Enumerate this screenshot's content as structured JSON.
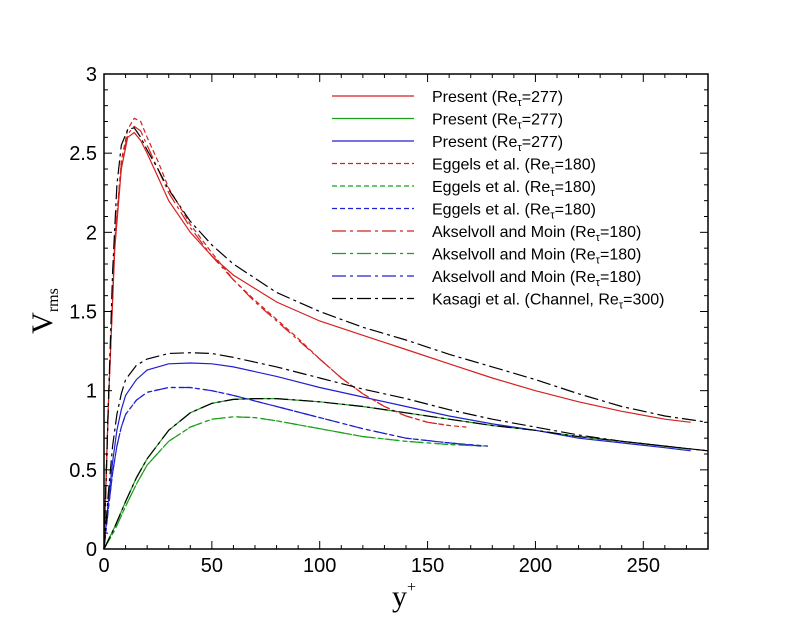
{
  "chart_data": {
    "type": "line",
    "title": "",
    "xlabel": "y",
    "xlabel_sup": "+",
    "ylabel": "V",
    "ylabel_sub": "rms",
    "xlim": [
      0,
      280
    ],
    "ylim": [
      0,
      3
    ],
    "xticks": [
      0,
      50,
      100,
      150,
      200,
      250
    ],
    "yticks": [
      0,
      0.5,
      1,
      1.5,
      2,
      2.5,
      3
    ],
    "ytick_labels": [
      "0",
      "0.5",
      "1",
      "1.5",
      "2",
      "2.5",
      "3"
    ],
    "grid": false,
    "legend_position": "top-right",
    "series": [
      {
        "legend": [
          "Present (Re",
          "τ",
          "=277)"
        ],
        "color": "#d42020",
        "dash": "solid",
        "x": [
          0,
          2,
          5,
          8,
          11,
          14,
          17,
          20,
          25,
          30,
          40,
          50,
          60,
          80,
          100,
          120,
          140,
          160,
          180,
          200,
          220,
          240,
          260,
          272
        ],
        "y": [
          0,
          0.9,
          1.9,
          2.4,
          2.6,
          2.63,
          2.58,
          2.5,
          2.35,
          2.2,
          2.0,
          1.85,
          1.73,
          1.56,
          1.44,
          1.35,
          1.26,
          1.17,
          1.08,
          1.0,
          0.93,
          0.87,
          0.82,
          0.8
        ]
      },
      {
        "legend": [
          "Present (Re",
          "τ",
          "=277)"
        ],
        "color": "#1aa01a",
        "dash": "solid",
        "x": [
          0,
          5,
          10,
          15,
          20,
          30,
          40,
          50,
          60,
          70,
          80,
          100,
          120,
          140,
          160,
          180,
          200,
          220,
          240,
          260,
          272
        ],
        "y": [
          0,
          0.14,
          0.3,
          0.45,
          0.57,
          0.75,
          0.86,
          0.92,
          0.945,
          0.95,
          0.95,
          0.93,
          0.9,
          0.86,
          0.82,
          0.78,
          0.75,
          0.71,
          0.68,
          0.65,
          0.63
        ]
      },
      {
        "legend": [
          "Present (Re",
          "τ",
          "=277)"
        ],
        "color": "#2020d0",
        "dash": "solid",
        "x": [
          0,
          2,
          4,
          6,
          8,
          10,
          15,
          20,
          30,
          40,
          50,
          60,
          80,
          100,
          120,
          140,
          160,
          180,
          200,
          220,
          240,
          260,
          272
        ],
        "y": [
          0,
          0.3,
          0.55,
          0.75,
          0.88,
          0.97,
          1.07,
          1.13,
          1.17,
          1.175,
          1.17,
          1.15,
          1.09,
          1.02,
          0.96,
          0.9,
          0.84,
          0.79,
          0.75,
          0.7,
          0.67,
          0.64,
          0.62
        ]
      },
      {
        "legend": [
          "Eggels et al. (Re",
          "τ",
          "=180)"
        ],
        "color": "#d42020",
        "dash": "5,3",
        "x": [
          0,
          2,
          5,
          8,
          11,
          14,
          17,
          20,
          25,
          30,
          40,
          50,
          60,
          70,
          80,
          90,
          100,
          110,
          120,
          130,
          140,
          150,
          160,
          168
        ],
        "y": [
          0,
          0.9,
          1.95,
          2.45,
          2.65,
          2.72,
          2.7,
          2.6,
          2.45,
          2.28,
          2.05,
          1.87,
          1.7,
          1.57,
          1.45,
          1.33,
          1.2,
          1.08,
          0.98,
          0.9,
          0.84,
          0.8,
          0.78,
          0.77
        ]
      },
      {
        "legend": [
          "Eggels et al. (Re",
          "τ",
          "=180)"
        ],
        "color": "#1aa01a",
        "dash": "5,3",
        "x": [
          0,
          5,
          10,
          15,
          20,
          30,
          40,
          50,
          60,
          70,
          80,
          100,
          120,
          140,
          160,
          178
        ],
        "y": [
          0,
          0.12,
          0.27,
          0.41,
          0.53,
          0.68,
          0.77,
          0.82,
          0.835,
          0.83,
          0.81,
          0.76,
          0.71,
          0.68,
          0.66,
          0.65
        ]
      },
      {
        "legend": [
          "Eggels et al. (Re",
          "τ",
          "=180)"
        ],
        "color": "#2020d0",
        "dash": "5,3",
        "x": [
          0,
          2,
          4,
          6,
          8,
          10,
          15,
          20,
          30,
          40,
          50,
          60,
          80,
          100,
          120,
          140,
          160,
          178
        ],
        "y": [
          0,
          0.25,
          0.48,
          0.65,
          0.77,
          0.85,
          0.94,
          0.99,
          1.02,
          1.02,
          1.0,
          0.97,
          0.9,
          0.83,
          0.76,
          0.7,
          0.67,
          0.65
        ]
      },
      {
        "legend": [
          "Akselvoll and Moin (Re",
          "τ",
          "=180)"
        ],
        "color": "#d42020",
        "dash": "14,4,3,4",
        "x": [
          0,
          2,
          5,
          8,
          11,
          14,
          17,
          20,
          25,
          30,
          40,
          50,
          60,
          70,
          80,
          90,
          100,
          110,
          120,
          130,
          140,
          150,
          160
        ],
        "y": [
          0,
          0.9,
          1.95,
          2.43,
          2.62,
          2.67,
          2.64,
          2.55,
          2.4,
          2.25,
          2.03,
          1.85,
          1.7,
          1.56,
          1.44,
          1.32,
          1.2,
          1.08,
          0.98,
          0.9,
          0.84,
          0.8,
          0.78
        ]
      },
      {
        "legend": [
          "Akselvoll and Moin (Re",
          "τ",
          "=180)"
        ],
        "color": "#1aa01a",
        "dash": "14,4,3,4",
        "x": [
          0,
          5,
          10,
          15,
          20,
          30,
          40,
          50,
          60,
          70,
          80,
          100,
          120,
          140,
          160,
          175
        ],
        "y": [
          0,
          0.12,
          0.27,
          0.41,
          0.53,
          0.68,
          0.77,
          0.82,
          0.835,
          0.83,
          0.81,
          0.76,
          0.71,
          0.68,
          0.66,
          0.65
        ]
      },
      {
        "legend": [
          "Akselvoll and Moin (Re",
          "τ",
          "=180)"
        ],
        "color": "#2020d0",
        "dash": "14,4,3,4",
        "x": [
          0,
          2,
          4,
          6,
          8,
          10,
          15,
          20,
          30,
          40,
          50,
          60,
          80,
          100,
          120,
          140,
          160,
          175
        ],
        "y": [
          0,
          0.25,
          0.48,
          0.65,
          0.77,
          0.85,
          0.94,
          0.99,
          1.02,
          1.02,
          1.0,
          0.97,
          0.9,
          0.83,
          0.76,
          0.7,
          0.67,
          0.65
        ]
      },
      {
        "legend": [
          "Kasagi et al. (Channel, Re",
          "τ",
          "=300)"
        ],
        "color": "#000000",
        "dash": "14,4,3,4",
        "x": [
          0,
          2,
          4,
          6,
          8,
          11,
          14,
          17,
          20,
          25,
          30,
          40,
          50,
          60,
          80,
          100,
          120,
          140,
          160,
          180,
          200,
          220,
          240,
          260,
          280
        ],
        "y": [
          0,
          0.9,
          1.75,
          2.3,
          2.55,
          2.65,
          2.66,
          2.6,
          2.52,
          2.4,
          2.27,
          2.07,
          1.92,
          1.8,
          1.62,
          1.5,
          1.4,
          1.32,
          1.23,
          1.15,
          1.07,
          0.98,
          0.9,
          0.84,
          0.8
        ]
      },
      {
        "legend": null,
        "color": "#000000",
        "dash": "14,4,3,4",
        "x": [
          0,
          2,
          4,
          6,
          8,
          10,
          15,
          20,
          30,
          40,
          50,
          60,
          80,
          100,
          120,
          140,
          160,
          180,
          200,
          220,
          240,
          260,
          280
        ],
        "y": [
          0,
          0.35,
          0.65,
          0.85,
          0.98,
          1.07,
          1.16,
          1.2,
          1.235,
          1.24,
          1.235,
          1.21,
          1.15,
          1.08,
          1.01,
          0.95,
          0.88,
          0.82,
          0.77,
          0.72,
          0.68,
          0.65,
          0.62
        ]
      },
      {
        "legend": null,
        "color": "#000000",
        "dash": "14,4,3,4",
        "x": [
          0,
          5,
          10,
          15,
          20,
          30,
          40,
          50,
          60,
          70,
          80,
          100,
          120,
          140,
          160,
          180,
          200,
          220,
          240,
          260,
          280
        ],
        "y": [
          0,
          0.14,
          0.3,
          0.45,
          0.57,
          0.75,
          0.86,
          0.92,
          0.945,
          0.95,
          0.95,
          0.93,
          0.9,
          0.86,
          0.82,
          0.78,
          0.75,
          0.71,
          0.68,
          0.65,
          0.62
        ]
      }
    ]
  }
}
